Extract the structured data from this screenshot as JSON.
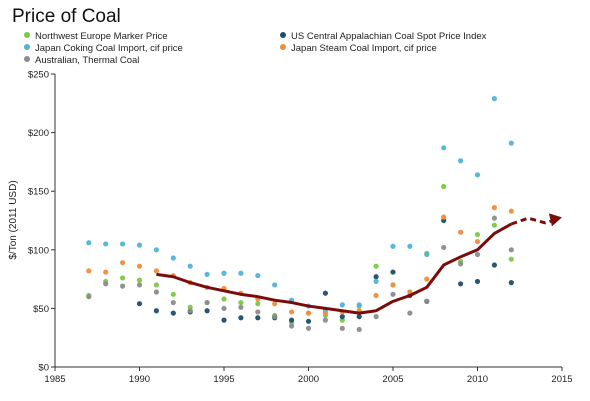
{
  "chart_data": {
    "type": "scatter",
    "title": "Price of Coal",
    "ylabel": "$/Ton (2011 USD)",
    "xlabel": "",
    "xlim": [
      1985,
      2015
    ],
    "ylim": [
      0,
      250
    ],
    "x_ticks": [
      "1985",
      "1990",
      "1995",
      "2000",
      "2005",
      "2010",
      "2015"
    ],
    "y_ticks": [
      "$0",
      "$50",
      "$100",
      "$150",
      "$200",
      "$250"
    ],
    "grid": false,
    "legend_position": "top",
    "series": [
      {
        "name": "Northwest Europe Marker Price",
        "color": "#7ac943",
        "x": [
          1987,
          1988,
          1989,
          1990,
          1991,
          1992,
          1993,
          1994,
          1995,
          1996,
          1997,
          1998,
          1999,
          2000,
          2001,
          2002,
          2003,
          2004,
          2005,
          2006,
          2007,
          2008,
          2009,
          2010,
          2011,
          2012
        ],
        "y": [
          61,
          73,
          76,
          74,
          70,
          62,
          51,
          55,
          58,
          55,
          54,
          44,
          38,
          46,
          44,
          40,
          52,
          86,
          70,
          64,
          97,
          154,
          90,
          113,
          121,
          92
        ]
      },
      {
        "name": "US Central Appalachian Coal Spot Price Index",
        "color": "#1d4e6a",
        "x": [
          1990,
          1991,
          1992,
          1993,
          1994,
          1995,
          1996,
          1997,
          1998,
          1999,
          2000,
          2001,
          2002,
          2003,
          2004,
          2005,
          2006,
          2007,
          2008,
          2009,
          2010,
          2011,
          2012
        ],
        "y": [
          54,
          48,
          46,
          47,
          48,
          40,
          42,
          42,
          42,
          40,
          39,
          63,
          43,
          43,
          77,
          81,
          61,
          56,
          125,
          71,
          73,
          87,
          72
        ]
      },
      {
        "name": "Japan Coking Coal Import, cif price",
        "color": "#4fb3d9",
        "x": [
          1987,
          1988,
          1989,
          1990,
          1991,
          1992,
          1993,
          1994,
          1995,
          1996,
          1997,
          1998,
          1999,
          2000,
          2001,
          2002,
          2003,
          2004,
          2005,
          2006,
          2007,
          2008,
          2009,
          2010,
          2011,
          2012
        ],
        "y": [
          106,
          105,
          105,
          104,
          100,
          93,
          86,
          79,
          80,
          80,
          78,
          70,
          57,
          52,
          48,
          53,
          53,
          73,
          103,
          103,
          96,
          187,
          176,
          164,
          229,
          191
        ]
      },
      {
        "name": "Japan Steam Coal Import, cif price",
        "color": "#f28c3c",
        "x": [
          1987,
          1988,
          1989,
          1990,
          1991,
          1992,
          1993,
          1994,
          1995,
          1996,
          1997,
          1998,
          1999,
          2000,
          2001,
          2002,
          2003,
          2004,
          2005,
          2006,
          2007,
          2008,
          2009,
          2010,
          2011,
          2012
        ],
        "y": [
          82,
          81,
          89,
          86,
          82,
          78,
          72,
          68,
          67,
          63,
          58,
          54,
          47,
          46,
          46,
          47,
          48,
          61,
          70,
          64,
          75,
          128,
          115,
          107,
          136,
          133
        ]
      },
      {
        "name": "Australian, Thermal Coal",
        "color": "#8c8c8c",
        "x": [
          1987,
          1988,
          1989,
          1990,
          1991,
          1992,
          1993,
          1994,
          1995,
          1996,
          1997,
          1998,
          1999,
          2000,
          2001,
          2002,
          2003,
          2004,
          2005,
          2006,
          2007,
          2008,
          2009,
          2010,
          2011,
          2012
        ],
        "y": [
          60,
          71,
          69,
          70,
          64,
          55,
          48,
          55,
          50,
          51,
          47,
          43,
          35,
          33,
          40,
          33,
          32,
          43,
          62,
          46,
          56,
          102,
          88,
          96,
          127,
          100
        ]
      }
    ],
    "trend_line": {
      "color": "#7a0c0c",
      "solid": {
        "x": [
          1991,
          1992,
          1993,
          1994,
          1995,
          1996,
          1997,
          1998,
          1999,
          2000,
          2001,
          2002,
          2003,
          2004,
          2005,
          2006,
          2007,
          2008,
          2009,
          2010,
          2011,
          2012
        ],
        "y": [
          79,
          77,
          72,
          68,
          65,
          62,
          60,
          57,
          55,
          52,
          50,
          48,
          46,
          48,
          56,
          61,
          68,
          87,
          94,
          100,
          114,
          122
        ]
      },
      "dashed": {
        "x": [
          2012,
          2013,
          2014,
          2014.7
        ],
        "y": [
          122,
          127,
          123,
          126
        ]
      }
    }
  }
}
